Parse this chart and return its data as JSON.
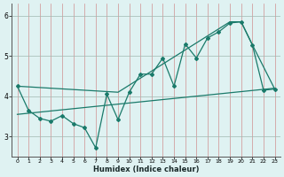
{
  "xlabel": "Humidex (Indice chaleur)",
  "bg_color": "#dff2f2",
  "line_color": "#1a7a6a",
  "grid_h_color": "#c0d8c8",
  "grid_v_color": "#e8b8b8",
  "xlim": [
    -0.5,
    23.5
  ],
  "ylim": [
    2.5,
    6.3
  ],
  "yticks": [
    3,
    4,
    5,
    6
  ],
  "xticks": [
    0,
    1,
    2,
    3,
    4,
    5,
    6,
    7,
    8,
    9,
    10,
    11,
    12,
    13,
    14,
    15,
    16,
    17,
    18,
    19,
    20,
    21,
    22,
    23
  ],
  "zigzag_x": [
    0,
    1,
    2,
    3,
    4,
    5,
    6,
    7,
    8,
    9,
    10,
    11,
    12,
    13,
    14,
    15,
    16,
    17,
    18,
    19,
    20,
    21,
    22,
    23
  ],
  "zigzag_y": [
    4.25,
    3.65,
    3.45,
    3.38,
    3.52,
    3.32,
    3.22,
    2.72,
    4.05,
    3.42,
    4.1,
    4.55,
    4.55,
    4.95,
    4.25,
    5.3,
    4.95,
    5.45,
    5.6,
    5.82,
    5.85,
    5.28,
    4.15,
    4.18
  ],
  "trend_x": [
    0,
    23
  ],
  "trend_y": [
    3.55,
    4.2
  ],
  "envelope_x": [
    0,
    9,
    19,
    20,
    21,
    23
  ],
  "envelope_y": [
    4.25,
    4.1,
    5.85,
    5.85,
    5.28,
    4.18
  ]
}
